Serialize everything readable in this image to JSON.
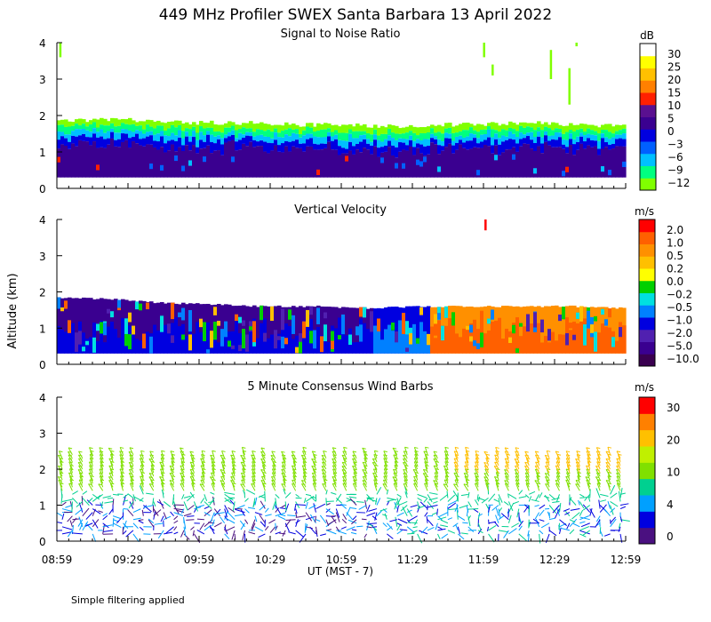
{
  "figure": {
    "title": "449 MHz Profiler SWEX Santa Barbara 13 April 2022",
    "y_axis_label": "Altitude (km)",
    "x_axis_label": "UT  (MST - 7)",
    "footnote": "Simple filtering applied"
  },
  "chart_data": [
    {
      "type": "heatmap",
      "title": "Signal to Noise Ratio",
      "colorbar_unit": "dB",
      "xlabel": "UT  (MST - 7)",
      "ylabel": "Altitude (km)",
      "ylim": [
        0,
        4
      ],
      "y_ticks": [
        "0",
        "1",
        "2",
        "3",
        "4"
      ],
      "x_ticks": [
        "08:59",
        "09:29",
        "09:59",
        "10:29",
        "10:59",
        "11:29",
        "11:59",
        "12:29",
        "12:59"
      ],
      "colorbar": {
        "colors": [
          "#80ff00",
          "#00ff80",
          "#00c0ff",
          "#0060ff",
          "#0000e0",
          "#3a0090",
          "#5a1090",
          "#ff2000",
          "#ff8000",
          "#ffc000",
          "#ffff00",
          "#ffffff"
        ],
        "labels": [
          "−12",
          "−9",
          "−6",
          "−3",
          "0",
          "5",
          "10",
          "15",
          "20",
          "25",
          "30"
        ]
      },
      "echo_top_km": [
        1.85,
        1.9,
        1.85,
        1.8,
        1.8,
        1.75,
        1.75,
        1.7,
        1.75,
        1.75,
        1.8,
        1.75,
        1.7
      ],
      "echo_bottom_km": 0.3,
      "layers_from_top": [
        {
          "band_km": 0.15,
          "color": "#80ff00"
        },
        {
          "band_km": 0.15,
          "color": "#00ff80"
        },
        {
          "band_km": 0.15,
          "color": "#00c0ff"
        },
        {
          "band_km": 0.2,
          "color": "#0000e0"
        },
        {
          "band_km": 99,
          "color": "#3a0090"
        }
      ]
    },
    {
      "type": "heatmap",
      "title": "Vertical Velocity",
      "colorbar_unit": "m/s",
      "xlabel": "UT  (MST - 7)",
      "ylabel": "Altitude (km)",
      "ylim": [
        0,
        4
      ],
      "y_ticks": [
        "0",
        "1",
        "2",
        "3",
        "4"
      ],
      "x_ticks": [
        "08:59",
        "09:29",
        "09:59",
        "10:29",
        "10:59",
        "11:29",
        "11:59",
        "12:29",
        "12:59"
      ],
      "colorbar": {
        "colors": [
          "#3a0050",
          "#3a0090",
          "#5020b0",
          "#0000e0",
          "#0080ff",
          "#00e0e0",
          "#00d000",
          "#ffff00",
          "#ffc000",
          "#ff9000",
          "#ff6000",
          "#ff0000"
        ],
        "labels": [
          "−10.0",
          "−5.0",
          "−2.0",
          "−1.0",
          "−0.5",
          "−0.2",
          "0.0",
          "0.2",
          "0.5",
          "1.0",
          "2.0"
        ]
      },
      "echo_top_km": [
        1.85,
        1.8,
        1.7,
        1.65,
        1.6,
        1.6,
        1.55,
        1.6,
        1.6,
        1.6,
        1.6,
        1.55
      ],
      "echo_bottom_km": 0.3,
      "regimes": [
        {
          "until_hour": 11.2,
          "upper": "#3a0090",
          "lower": "#0000e0"
        },
        {
          "until_hour": 11.6,
          "upper": "#0000e0",
          "lower": "#0080ff"
        },
        {
          "until_hour": 13.0,
          "upper": "#ff9000",
          "lower": "#ff6000"
        }
      ]
    },
    {
      "type": "scatter",
      "title": "5 Minute Consensus Wind Barbs",
      "colorbar_unit": "m/s",
      "xlabel": "UT  (MST - 7)",
      "ylabel": "Altitude (km)",
      "ylim": [
        0,
        4
      ],
      "y_ticks": [
        "0",
        "1",
        "2",
        "3",
        "4"
      ],
      "x_ticks": [
        "08:59",
        "09:29",
        "09:59",
        "10:29",
        "10:59",
        "11:29",
        "11:59",
        "12:29",
        "12:59"
      ],
      "colorbar": {
        "colors": [
          "#4a1080",
          "#0000e0",
          "#00a0ff",
          "#00d090",
          "#80e000",
          "#c0f000",
          "#ffc000",
          "#ff8000",
          "#ff0000"
        ],
        "labels": [
          "0",
          "4",
          "10",
          "20",
          "30"
        ]
      },
      "barb_top_km": 2.4,
      "barb_bottom_km": 0.2
    }
  ]
}
